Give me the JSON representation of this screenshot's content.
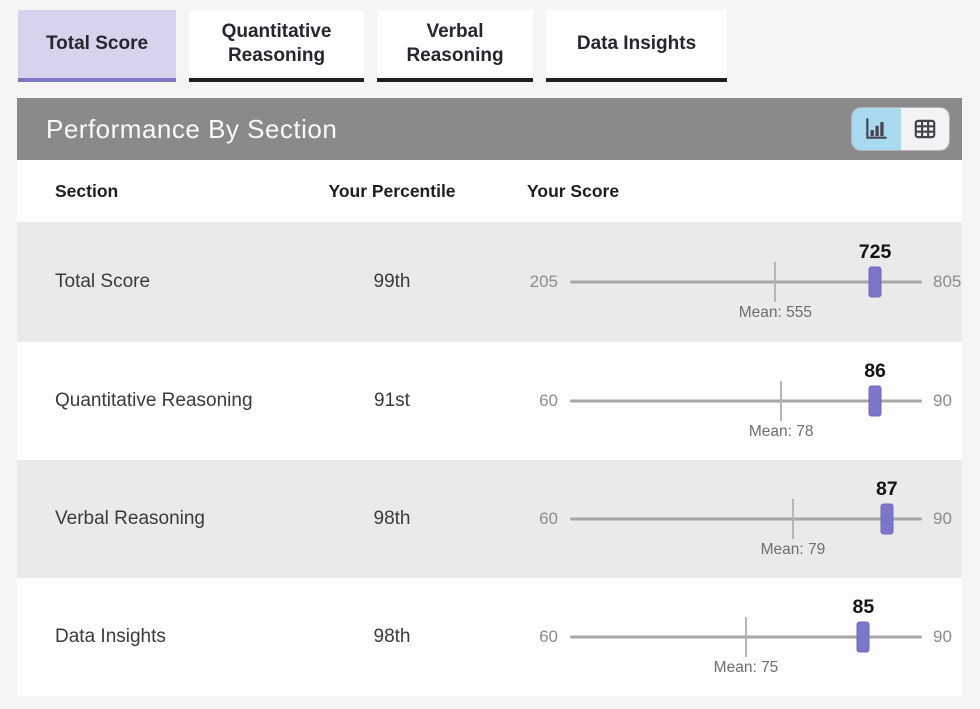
{
  "tabs": [
    {
      "label": "Total Score",
      "active": true
    },
    {
      "label": "Quantitative Reasoning",
      "active": false
    },
    {
      "label": "Verbal Reasoning",
      "active": false
    },
    {
      "label": "Data Insights",
      "active": false
    }
  ],
  "panel": {
    "title": "Performance By Section",
    "view_toggle": {
      "active_view": "chart",
      "chart_icon": "bar-chart-icon",
      "table_icon": "table-grid-icon"
    }
  },
  "table": {
    "headers": {
      "section": "Section",
      "percentile": "Your Percentile",
      "score": "Your Score"
    },
    "rows": [
      {
        "section": "Total Score",
        "percentile": "99th",
        "min": 205,
        "max": 805,
        "score": 725,
        "mean": 555,
        "min_label": "205",
        "max_label": "805",
        "score_label": "725",
        "mean_label": "Mean: 555"
      },
      {
        "section": "Quantitative Reasoning",
        "percentile": "91st",
        "min": 60,
        "max": 90,
        "score": 86,
        "mean": 78,
        "min_label": "60",
        "max_label": "90",
        "score_label": "86",
        "mean_label": "Mean: 78"
      },
      {
        "section": "Verbal Reasoning",
        "percentile": "98th",
        "min": 60,
        "max": 90,
        "score": 87,
        "mean": 79,
        "min_label": "60",
        "max_label": "90",
        "score_label": "87",
        "mean_label": "Mean: 79"
      },
      {
        "section": "Data Insights",
        "percentile": "98th",
        "min": 60,
        "max": 90,
        "score": 85,
        "mean": 75,
        "min_label": "60",
        "max_label": "90",
        "score_label": "85",
        "mean_label": "Mean: 75"
      }
    ]
  },
  "colors": {
    "accent_purple": "#7c76cb",
    "active_tab_bg": "#d8d3ed",
    "active_tab_underline": "#7e76c0",
    "inactive_tab_underline": "#1f1f1f",
    "panel_header_bg": "#8a8a8a",
    "chart_toggle_blue": "#a9d9ef",
    "row_alt_bg": "#ebeaea"
  }
}
